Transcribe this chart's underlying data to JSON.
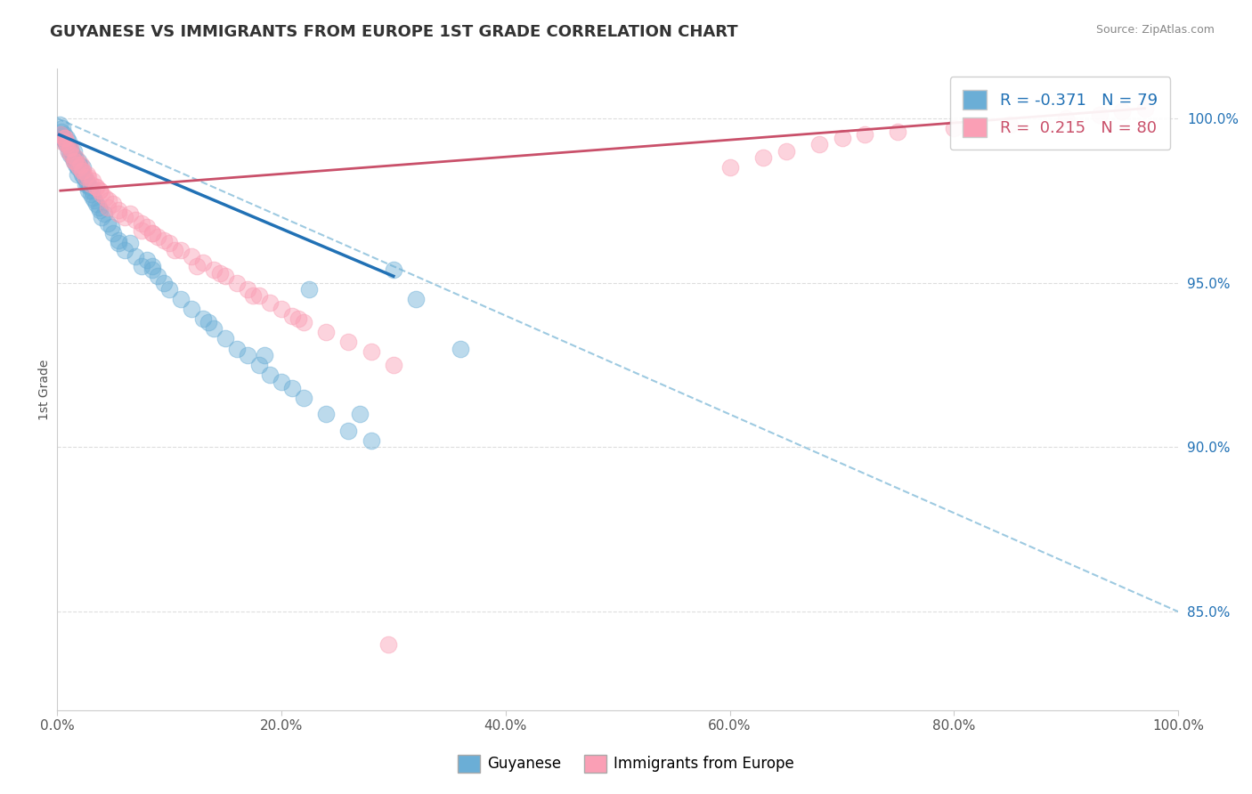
{
  "title": "GUYANESE VS IMMIGRANTS FROM EUROPE 1ST GRADE CORRELATION CHART",
  "source_text": "Source: ZipAtlas.com",
  "ylabel": "1st Grade",
  "xlim": [
    0.0,
    100.0
  ],
  "ylim": [
    82.0,
    101.5
  ],
  "yticks": [
    85.0,
    90.0,
    95.0,
    100.0
  ],
  "xticks": [
    0.0,
    20.0,
    40.0,
    60.0,
    80.0,
    100.0
  ],
  "xtick_labels": [
    "0.0%",
    "20.0%",
    "40.0%",
    "60.0%",
    "80.0%",
    "100.0%"
  ],
  "ytick_labels": [
    "85.0%",
    "90.0%",
    "95.0%",
    "100.0%"
  ],
  "legend_label1": "Guyanese",
  "legend_label2": "Immigrants from Europe",
  "R1": -0.371,
  "N1": 79,
  "R2": 0.215,
  "N2": 80,
  "blue_color": "#6baed6",
  "pink_color": "#fa9fb5",
  "blue_line_color": "#2171b5",
  "pink_line_color": "#c9506a",
  "dashed_line_color": "#9ecae1",
  "background_color": "#ffffff",
  "grid_color": "#dddddd",
  "title_color": "#333333",
  "blue_scatter_x": [
    0.2,
    0.3,
    0.4,
    0.5,
    0.5,
    0.6,
    0.7,
    0.8,
    0.9,
    1.0,
    1.0,
    1.1,
    1.2,
    1.3,
    1.4,
    1.5,
    1.5,
    1.6,
    1.7,
    1.8,
    1.9,
    2.0,
    2.0,
    2.1,
    2.2,
    2.3,
    2.4,
    2.5,
    2.6,
    2.7,
    2.8,
    2.9,
    3.0,
    3.1,
    3.2,
    3.3,
    3.5,
    3.7,
    4.0,
    4.2,
    4.5,
    4.8,
    5.0,
    5.5,
    6.0,
    6.5,
    7.0,
    7.5,
    8.0,
    8.5,
    9.0,
    9.5,
    10.0,
    11.0,
    12.0,
    13.0,
    14.0,
    15.0,
    16.0,
    17.0,
    18.0,
    19.0,
    20.0,
    21.0,
    22.0,
    24.0,
    26.0,
    28.0,
    30.0,
    5.5,
    18.5,
    32.0,
    36.0,
    22.5,
    8.5,
    13.5,
    3.8,
    27.0,
    1.8
  ],
  "blue_scatter_y": [
    99.8,
    99.5,
    99.6,
    99.4,
    99.7,
    99.5,
    99.3,
    99.2,
    99.4,
    99.0,
    99.3,
    99.1,
    98.9,
    99.0,
    98.8,
    98.7,
    99.0,
    98.8,
    98.6,
    98.5,
    98.7,
    98.5,
    98.6,
    98.4,
    98.3,
    98.5,
    98.2,
    98.0,
    98.1,
    98.0,
    97.8,
    97.9,
    97.7,
    97.8,
    97.6,
    97.5,
    97.4,
    97.3,
    97.0,
    97.1,
    96.8,
    96.7,
    96.5,
    96.3,
    96.0,
    96.2,
    95.8,
    95.5,
    95.7,
    95.4,
    95.2,
    95.0,
    94.8,
    94.5,
    94.2,
    93.9,
    93.6,
    93.3,
    93.0,
    92.8,
    92.5,
    92.2,
    92.0,
    91.8,
    91.5,
    91.0,
    90.5,
    90.2,
    95.4,
    96.2,
    92.8,
    94.5,
    93.0,
    94.8,
    95.5,
    93.8,
    97.2,
    91.0,
    98.3
  ],
  "pink_scatter_x": [
    0.3,
    0.5,
    0.7,
    0.9,
    1.0,
    1.1,
    1.3,
    1.5,
    1.7,
    1.8,
    2.0,
    2.1,
    2.3,
    2.5,
    2.7,
    3.0,
    3.2,
    3.5,
    3.8,
    4.0,
    4.3,
    4.6,
    5.0,
    5.5,
    6.0,
    6.5,
    7.0,
    7.5,
    8.0,
    8.5,
    9.0,
    9.5,
    10.0,
    11.0,
    12.0,
    13.0,
    14.0,
    15.0,
    16.0,
    17.0,
    18.0,
    19.0,
    20.0,
    21.0,
    22.0,
    24.0,
    26.0,
    28.0,
    60.0,
    63.0,
    65.0,
    68.0,
    70.0,
    72.0,
    75.0,
    80.0,
    85.0,
    90.0,
    93.0,
    95.0,
    97.0,
    30.0,
    2.8,
    1.6,
    4.5,
    7.5,
    12.5,
    0.6,
    3.5,
    8.5,
    17.5,
    0.8,
    1.2,
    2.2,
    3.8,
    5.5,
    10.5,
    14.5,
    21.5,
    29.5
  ],
  "pink_scatter_y": [
    99.5,
    99.3,
    99.4,
    99.2,
    99.0,
    99.1,
    98.9,
    98.7,
    98.8,
    98.6,
    98.5,
    98.6,
    98.4,
    98.2,
    98.3,
    98.0,
    98.1,
    97.9,
    97.8,
    97.7,
    97.6,
    97.5,
    97.4,
    97.2,
    97.0,
    97.1,
    96.9,
    96.8,
    96.7,
    96.5,
    96.4,
    96.3,
    96.2,
    96.0,
    95.8,
    95.6,
    95.4,
    95.2,
    95.0,
    94.8,
    94.6,
    94.4,
    94.2,
    94.0,
    93.8,
    93.5,
    93.2,
    92.9,
    98.5,
    98.8,
    99.0,
    99.2,
    99.4,
    99.5,
    99.6,
    99.7,
    99.8,
    100.0,
    100.1,
    100.2,
    100.3,
    92.5,
    98.2,
    98.7,
    97.3,
    96.6,
    95.5,
    99.4,
    97.9,
    96.5,
    94.6,
    99.3,
    99.1,
    98.4,
    97.8,
    97.1,
    96.0,
    95.3,
    93.9,
    84.0
  ],
  "blue_trend_x": [
    0.2,
    30.0
  ],
  "blue_trend_y": [
    99.5,
    95.2
  ],
  "pink_trend_x": [
    0.3,
    97.0
  ],
  "pink_trend_y": [
    97.8,
    100.3
  ],
  "dash_trend_x": [
    0.0,
    100.0
  ],
  "dash_trend_y": [
    100.0,
    85.0
  ]
}
